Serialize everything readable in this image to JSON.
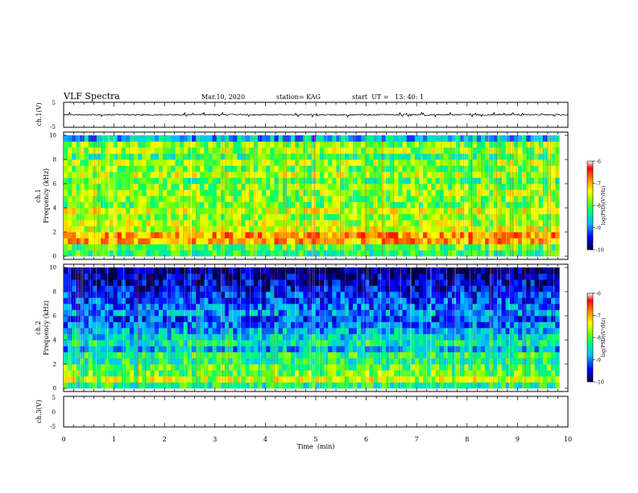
{
  "header": {
    "title": "VLF Spectra",
    "date": "Mar.10, 2020",
    "station": "station= KAG",
    "start": "start  UT =   13: 40: 1"
  },
  "chart_data": [
    {
      "type": "line",
      "panel": "ch1-waveform",
      "ylabel": "ch.1(V)",
      "ylim": [
        -5,
        5
      ],
      "ytick_labels": [
        "5",
        "-5"
      ],
      "xlim": [
        0,
        10
      ],
      "baseline": 0
    },
    {
      "type": "heatmap",
      "panel": "ch1-spectrogram",
      "ylabel": "ch.1\nFrequency (kHz)",
      "ylim": [
        0,
        10
      ],
      "ytick_labels": [
        "0",
        "2",
        "4",
        "6",
        "8",
        "10"
      ],
      "xlim": [
        0,
        9.83
      ],
      "colorbar": {
        "label": "log(PSD)(V²/Hz)",
        "range": [
          -10,
          -6
        ],
        "tick_labels": [
          "-6",
          "-7",
          "-8",
          "-9",
          "-10"
        ]
      },
      "band_profile_freq_kHz": [
        0.25,
        0.75,
        1.25,
        1.75,
        2.25,
        2.75,
        3.25,
        3.75,
        4.25,
        4.75,
        5.25,
        5.75,
        6.25,
        6.75,
        7.25,
        7.75,
        8.25,
        8.75,
        9.25,
        9.75
      ],
      "band_profile_logpsd": [
        -8.2,
        -8.0,
        -7.0,
        -6.9,
        -7.5,
        -7.6,
        -7.7,
        -7.5,
        -7.9,
        -7.8,
        -7.7,
        -7.8,
        -8.0,
        -7.6,
        -7.9,
        -7.7,
        -8.1,
        -7.7,
        -7.8,
        -8.8
      ]
    },
    {
      "type": "heatmap",
      "panel": "ch2-spectrogram",
      "ylabel": "ch.2\nFrequency (kHz)",
      "ylim": [
        0,
        10
      ],
      "ytick_labels": [
        "0",
        "2",
        "4",
        "6",
        "8",
        "10"
      ],
      "xlim": [
        0,
        9.83
      ],
      "colorbar": {
        "label": "log(PSD)(V²/Hz)",
        "range": [
          -10,
          -6
        ],
        "tick_labels": [
          "-6",
          "-7",
          "-8",
          "-9",
          "-10"
        ]
      },
      "band_profile_freq_kHz": [
        0.25,
        0.75,
        1.25,
        1.75,
        2.25,
        2.75,
        3.25,
        3.75,
        4.25,
        4.75,
        5.25,
        5.75,
        6.25,
        6.75,
        7.25,
        7.75,
        8.25,
        8.75,
        9.25,
        9.75
      ],
      "band_profile_logpsd": [
        -8.3,
        -7.6,
        -7.9,
        -8.0,
        -8.3,
        -8.2,
        -8.8,
        -8.4,
        -8.6,
        -8.8,
        -9.0,
        -9.2,
        -8.9,
        -9.1,
        -9.2,
        -9.3,
        -9.5,
        -9.6,
        -9.7,
        -9.9
      ]
    },
    {
      "type": "line",
      "panel": "ch3-waveform",
      "ylabel": "ch.3(V)",
      "ylim": [
        -5,
        5
      ],
      "ytick_labels": [
        "5",
        "0",
        "-5"
      ],
      "xlim": [
        0,
        10
      ],
      "xlabel": "Time  (min)",
      "xtick_labels": [
        "0",
        "1",
        "2",
        "3",
        "4",
        "5",
        "6",
        "7",
        "8",
        "9",
        "10"
      ]
    }
  ]
}
